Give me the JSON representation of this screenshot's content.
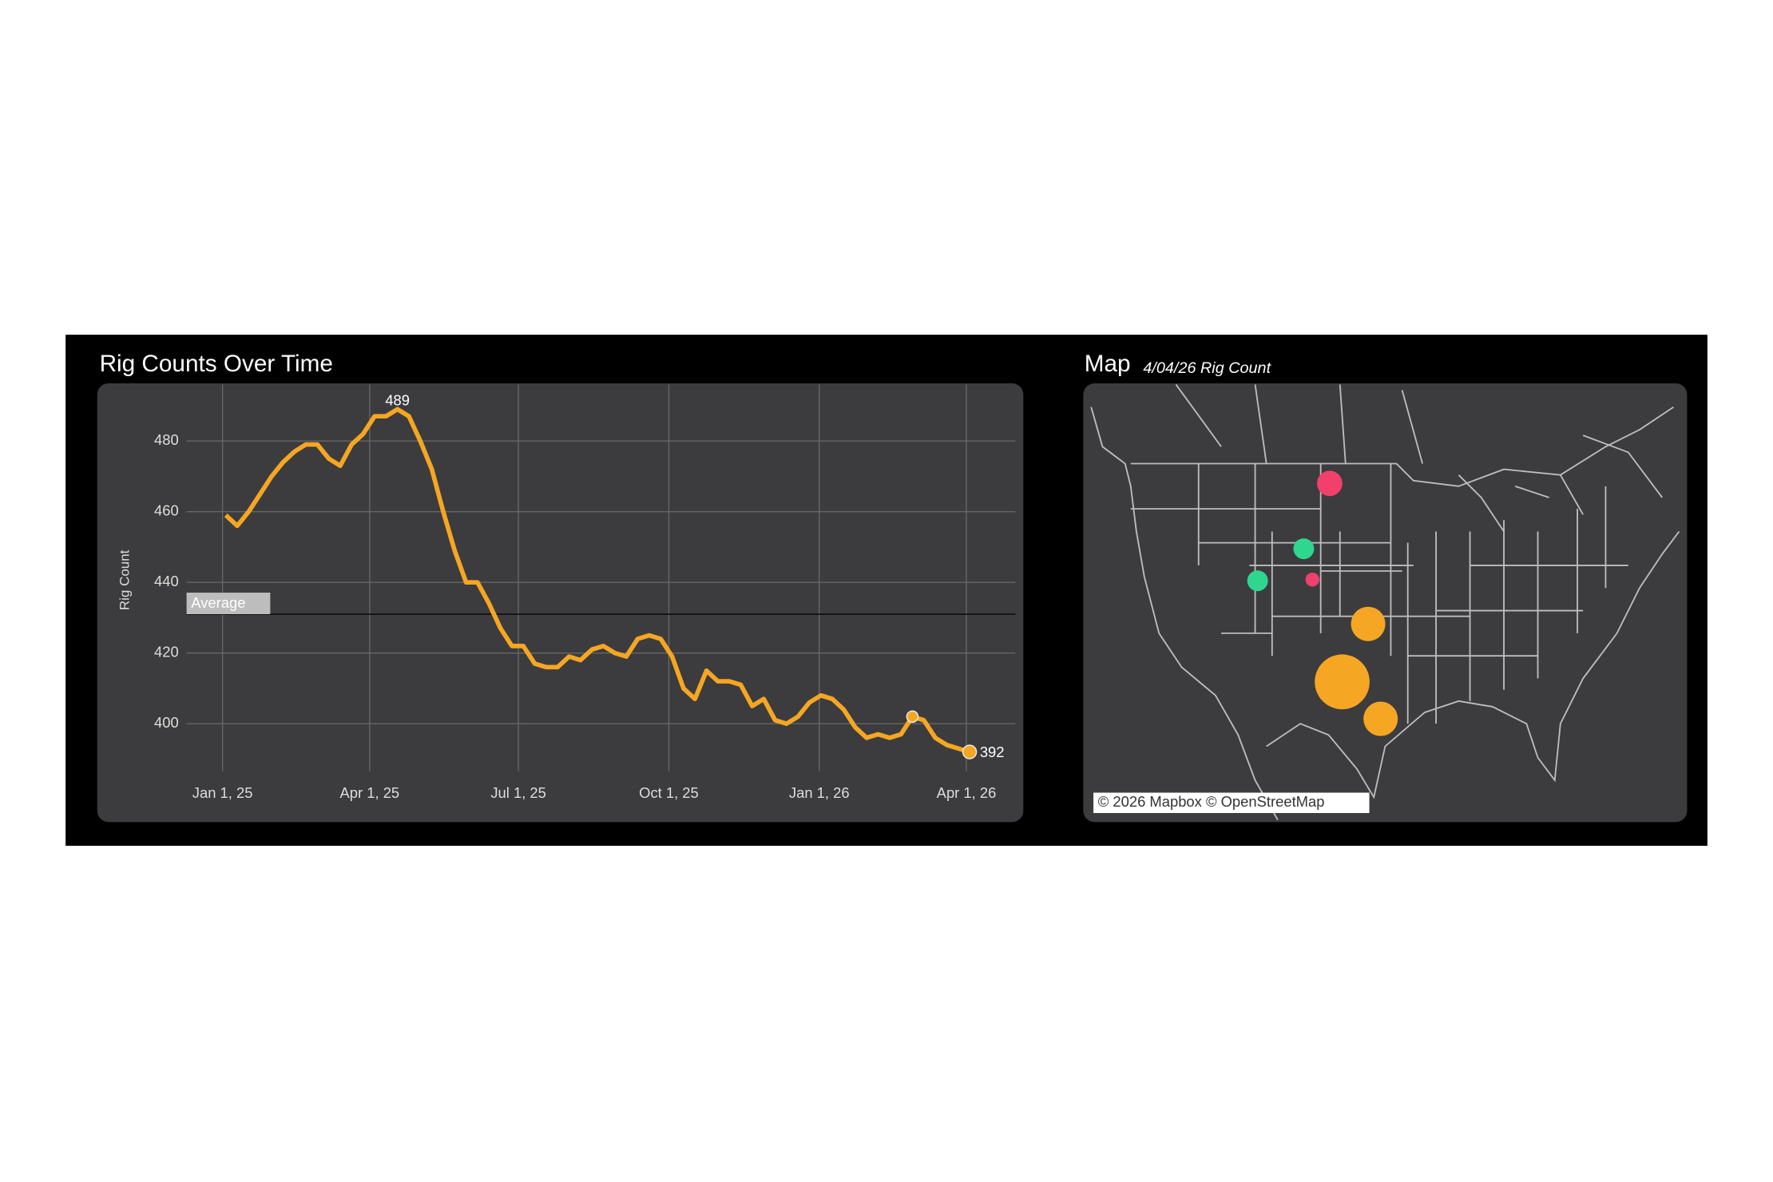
{
  "chart_data": {
    "type": "line",
    "title": "Rig Counts Over Time",
    "ylabel": "Rig Count",
    "x": [
      "2025-01-03",
      "2025-01-10",
      "2025-01-17",
      "2025-01-24",
      "2025-01-31",
      "2025-02-07",
      "2025-02-14",
      "2025-02-21",
      "2025-02-28",
      "2025-03-07",
      "2025-03-14",
      "2025-03-21",
      "2025-03-28",
      "2025-04-04",
      "2025-04-11",
      "2025-04-18",
      "2025-04-25",
      "2025-05-02",
      "2025-05-09",
      "2025-05-16",
      "2025-05-23",
      "2025-05-30",
      "2025-06-06",
      "2025-06-13",
      "2025-06-20",
      "2025-06-27",
      "2025-07-04",
      "2025-07-11",
      "2025-07-18",
      "2025-07-25",
      "2025-08-01",
      "2025-08-08",
      "2025-08-15",
      "2025-08-22",
      "2025-08-29",
      "2025-09-05",
      "2025-09-12",
      "2025-09-19",
      "2025-09-26",
      "2025-10-03",
      "2025-10-10",
      "2025-10-17",
      "2025-10-24",
      "2025-10-31",
      "2025-11-07",
      "2025-11-14",
      "2025-11-21",
      "2025-11-28",
      "2025-12-05",
      "2025-12-12",
      "2025-12-19",
      "2025-12-26",
      "2026-01-02",
      "2026-01-09",
      "2026-01-16",
      "2026-01-23",
      "2026-01-30",
      "2026-02-06",
      "2026-02-13",
      "2026-02-20",
      "2026-02-27",
      "2026-03-06",
      "2026-03-13",
      "2026-03-20",
      "2026-03-27",
      "2026-04-03"
    ],
    "values": [
      459,
      456,
      460,
      465,
      470,
      474,
      477,
      479,
      479,
      475,
      473,
      479,
      482,
      487,
      487,
      489,
      487,
      480,
      472,
      460,
      449,
      440,
      440,
      434,
      427,
      422,
      422,
      417,
      416,
      416,
      419,
      418,
      421,
      422,
      420,
      419,
      424,
      425,
      424,
      419,
      410,
      407,
      415,
      412,
      412,
      411,
      405,
      407,
      401,
      400,
      402,
      406,
      408,
      407,
      404,
      399,
      396,
      397,
      396,
      397,
      402,
      401,
      396,
      394,
      393,
      392
    ],
    "color": "#f5a623",
    "xlim": [
      "2024-12-10",
      "2026-05-01"
    ],
    "xticks": [
      {
        "value": "2025-01-01",
        "label": "Jan 1, 25"
      },
      {
        "value": "2025-04-01",
        "label": "Apr 1, 25"
      },
      {
        "value": "2025-07-01",
        "label": "Jul 1, 25"
      },
      {
        "value": "2025-10-01",
        "label": "Oct 1, 25"
      },
      {
        "value": "2026-01-01",
        "label": "Jan 1, 26"
      },
      {
        "value": "2026-04-01",
        "label": "Apr 1, 26"
      }
    ],
    "ylim": [
      384,
      496
    ],
    "yticks": [
      400,
      420,
      440,
      460,
      480
    ],
    "grid": true,
    "average": {
      "label": "Average",
      "value": 431
    }
  },
  "map": {
    "title": "Map",
    "subtitle": "4/04/26 Rig Count",
    "attribution": "© 2026 Mapbox © OpenStreetMap",
    "points": {
      "lon": [
        -102.5,
        -99.8,
        -98.5,
        -103.8,
        -106.5,
        -111.3,
        -105.6
      ],
      "lat": [
        31.8,
        36.5,
        28.8,
        47.9,
        42.6,
        40.0,
        40.1
      ],
      "values": [
        280,
        110,
        110,
        60,
        40,
        40,
        18
      ],
      "colors": [
        "#f5a623",
        "#f5a623",
        "#f5a623",
        "#f0406b",
        "#2fd68e",
        "#2fd68e",
        "#f0406b"
      ]
    }
  }
}
